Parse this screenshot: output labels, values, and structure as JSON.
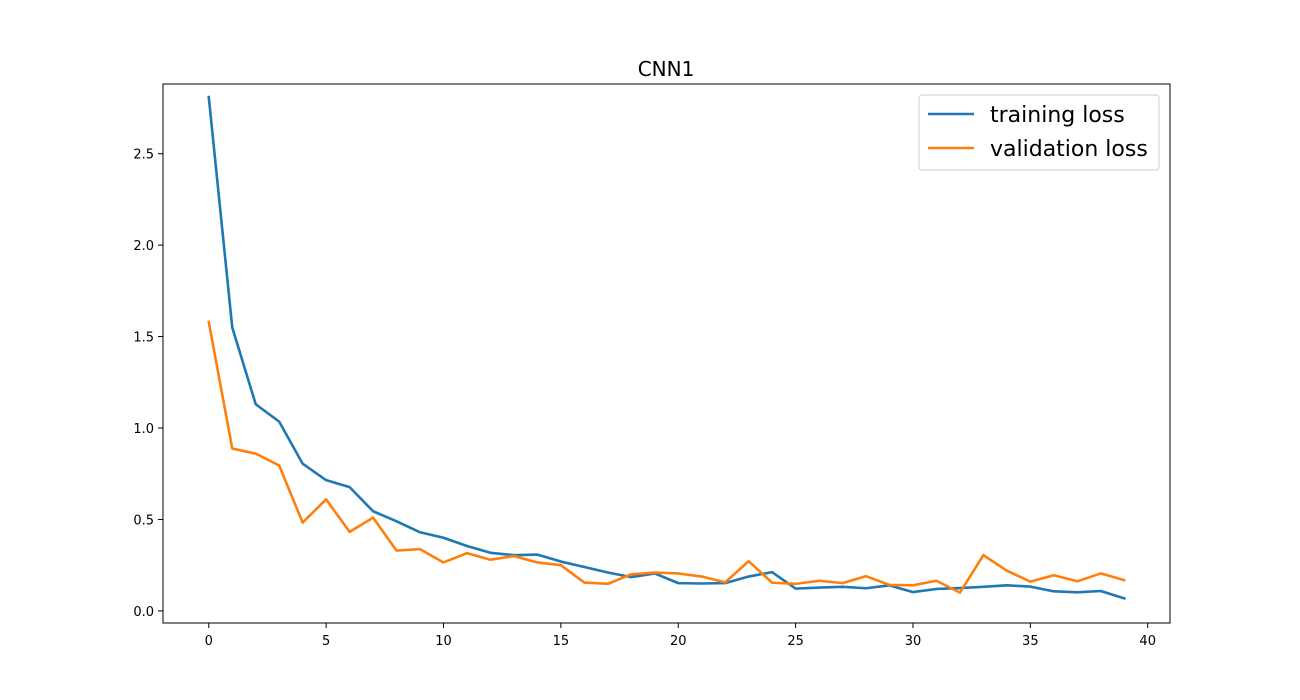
{
  "chart_data": {
    "type": "line",
    "title": "CNN1",
    "xlabel": "",
    "ylabel": "",
    "xlim": [
      -1.95,
      40.95
    ],
    "ylim": [
      -0.066,
      2.881
    ],
    "xticks": [
      0,
      5,
      10,
      15,
      20,
      25,
      30,
      35,
      40
    ],
    "yticks": [
      0.0,
      0.5,
      1.0,
      1.5,
      2.0,
      2.5
    ],
    "ytick_labels": [
      "0.0",
      "0.5",
      "1.0",
      "1.5",
      "2.0",
      "2.5"
    ],
    "grid": false,
    "legend_position": "top-right",
    "x": [
      0,
      1,
      2,
      3,
      4,
      5,
      6,
      7,
      8,
      9,
      10,
      11,
      12,
      13,
      14,
      15,
      16,
      17,
      18,
      19,
      20,
      21,
      22,
      23,
      24,
      25,
      26,
      27,
      28,
      29,
      30,
      31,
      32,
      33,
      34,
      35,
      36,
      37,
      38,
      39
    ],
    "series": [
      {
        "name": "training loss",
        "color": "#1f77b4",
        "values": [
          2.81,
          1.55,
          1.13,
          1.035,
          0.805,
          0.715,
          0.677,
          0.545,
          0.49,
          0.43,
          0.4,
          0.355,
          0.318,
          0.305,
          0.308,
          0.27,
          0.24,
          0.21,
          0.185,
          0.205,
          0.152,
          0.15,
          0.152,
          0.188,
          0.212,
          0.122,
          0.128,
          0.132,
          0.124,
          0.14,
          0.103,
          0.12,
          0.125,
          0.132,
          0.14,
          0.133,
          0.107,
          0.102,
          0.109,
          0.069
        ]
      },
      {
        "name": "validation loss",
        "color": "#ff7f0e",
        "values": [
          1.58,
          0.888,
          0.86,
          0.795,
          0.483,
          0.61,
          0.432,
          0.51,
          0.33,
          0.338,
          0.265,
          0.316,
          0.28,
          0.3,
          0.265,
          0.25,
          0.155,
          0.148,
          0.2,
          0.21,
          0.205,
          0.188,
          0.156,
          0.272,
          0.154,
          0.148,
          0.165,
          0.152,
          0.19,
          0.142,
          0.14,
          0.165,
          0.1,
          0.305,
          0.22,
          0.16,
          0.195,
          0.162,
          0.205,
          0.168
        ]
      }
    ]
  }
}
